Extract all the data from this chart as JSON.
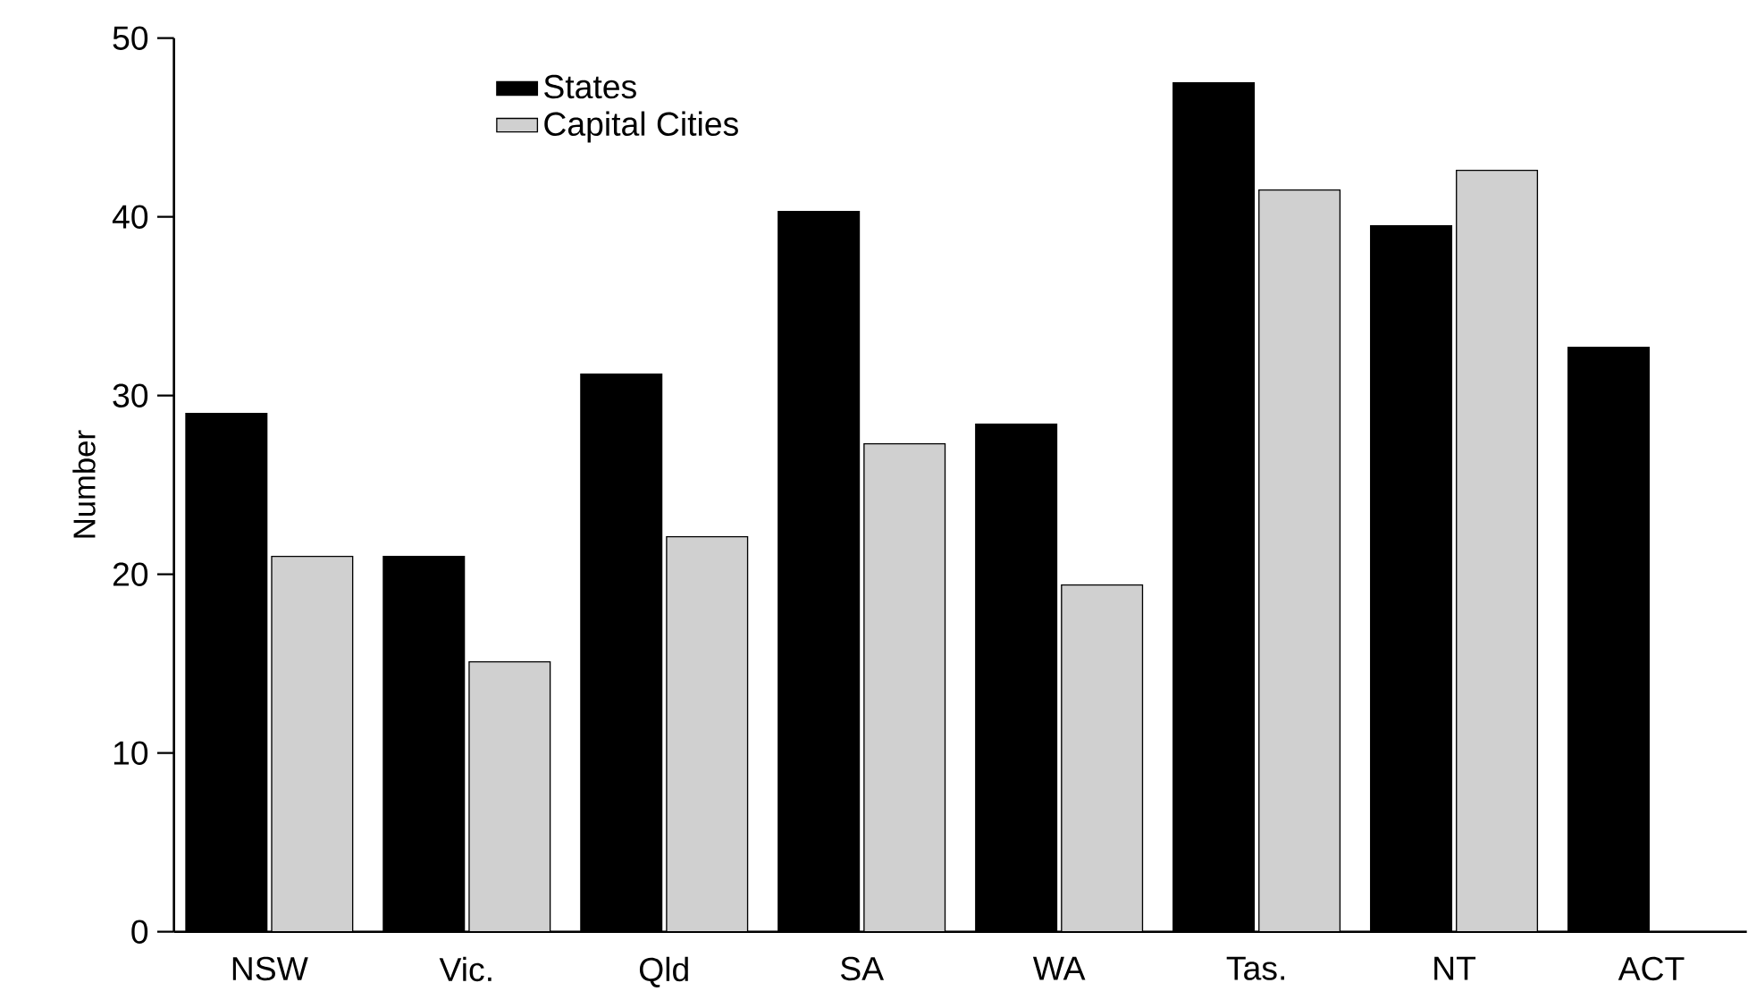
{
  "chart_data": {
    "type": "bar",
    "ylabel": "Number",
    "categories": [
      "NSW",
      "Vic.",
      "Qld",
      "SA",
      "WA",
      "Tas.",
      "NT",
      "ACT"
    ],
    "series": [
      {
        "name": "States",
        "color": "#000000",
        "values": [
          29,
          21,
          31.2,
          40.3,
          28.4,
          47.5,
          39.5,
          32.7
        ]
      },
      {
        "name": "Capital Cities",
        "color": "#d0d0d0",
        "values": [
          21,
          15.1,
          22.1,
          27.3,
          19.4,
          41.5,
          42.6,
          null
        ]
      }
    ],
    "ylim": [
      0,
      50
    ],
    "yticks": [
      0,
      10,
      20,
      30,
      40,
      50
    ],
    "grid": false,
    "legend": "top left"
  }
}
